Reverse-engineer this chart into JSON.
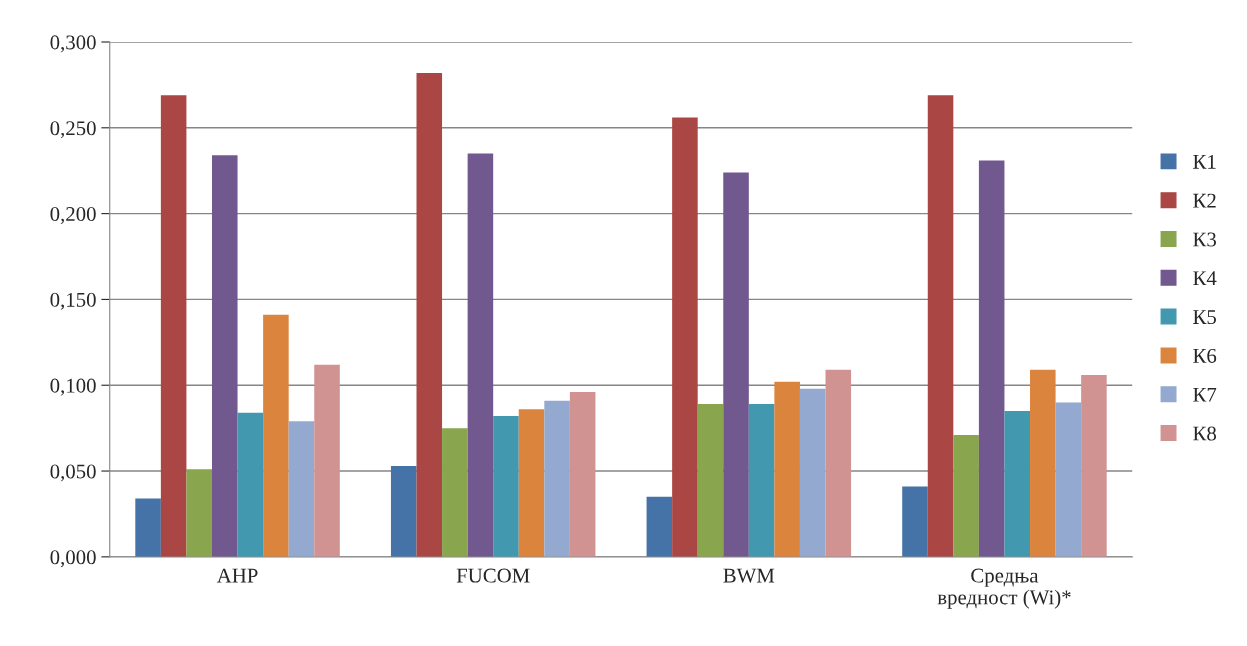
{
  "chart_data": {
    "type": "bar",
    "categories": [
      "AHP",
      "FUCOM",
      "BWM",
      "Средња\nвредност (Wi)*"
    ],
    "series": [
      {
        "name": "К1",
        "color": "#4572a7",
        "values": [
          0.034,
          0.053,
          0.035,
          0.041
        ]
      },
      {
        "name": "К2",
        "color": "#aa4643",
        "values": [
          0.269,
          0.282,
          0.256,
          0.269
        ]
      },
      {
        "name": "К3",
        "color": "#89a54e",
        "values": [
          0.051,
          0.075,
          0.089,
          0.071
        ]
      },
      {
        "name": "К4",
        "color": "#71588f",
        "values": [
          0.234,
          0.235,
          0.224,
          0.231
        ]
      },
      {
        "name": "К5",
        "color": "#4198af",
        "values": [
          0.084,
          0.082,
          0.089,
          0.085
        ]
      },
      {
        "name": "К6",
        "color": "#db843d",
        "values": [
          0.141,
          0.086,
          0.102,
          0.109
        ]
      },
      {
        "name": "К7",
        "color": "#93a9cf",
        "values": [
          0.079,
          0.091,
          0.098,
          0.09
        ]
      },
      {
        "name": "К8",
        "color": "#d19392",
        "values": [
          0.112,
          0.096,
          0.109,
          0.106
        ]
      }
    ],
    "ylim": [
      0,
      0.3
    ],
    "yticks": [
      {
        "value": 0,
        "label": "0,000"
      },
      {
        "value": 0.05,
        "label": "0,050"
      },
      {
        "value": 0.1,
        "label": "0,100"
      },
      {
        "value": 0.15,
        "label": "0,150"
      },
      {
        "value": 0.2,
        "label": "0,200"
      },
      {
        "value": 0.25,
        "label": "0,250"
      },
      {
        "value": 0.3,
        "label": "0,300"
      }
    ],
    "grid": "y",
    "legend": "right"
  }
}
